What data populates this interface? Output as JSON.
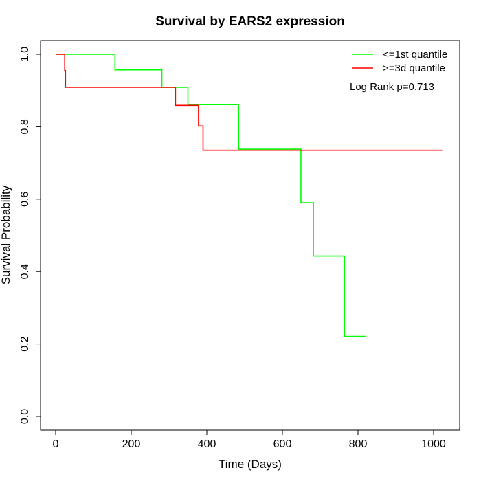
{
  "chart_data": {
    "type": "line",
    "title": "Survival by EARS2 expression",
    "xlabel": "Time (Days)",
    "ylabel": "Survival Probability",
    "xlim": [
      0,
      1025
    ],
    "ylim": [
      0,
      1
    ],
    "x_ticks": [
      0,
      200,
      400,
      600,
      800,
      1000
    ],
    "x_tick_labels": [
      "0",
      "200",
      "400",
      "600",
      "800",
      "1000"
    ],
    "y_ticks": [
      0,
      0.2,
      0.4,
      0.6,
      0.8,
      1.0
    ],
    "y_tick_labels": [
      "0.0",
      "0.2",
      "0.4",
      "0.6",
      "0.8",
      "1.0"
    ],
    "grid": false,
    "legend_position": "top-right",
    "annotation": "Log Rank p=0.713",
    "series": [
      {
        "name": "<=1st quantile",
        "color": "#00ff00",
        "step": true,
        "x": [
          0,
          157,
          281,
          350,
          484,
          649,
          682,
          764,
          822
        ],
        "y": [
          1.0,
          0.957,
          0.909,
          0.861,
          0.738,
          0.59,
          0.443,
          0.221,
          0.221
        ]
      },
      {
        "name": ">=3d quantile",
        "color": "#ff0000",
        "step": true,
        "x": [
          0,
          24,
          26,
          317,
          378,
          390,
          1023
        ],
        "y": [
          1.0,
          0.955,
          0.909,
          0.859,
          0.802,
          0.735,
          0.735
        ]
      }
    ]
  }
}
